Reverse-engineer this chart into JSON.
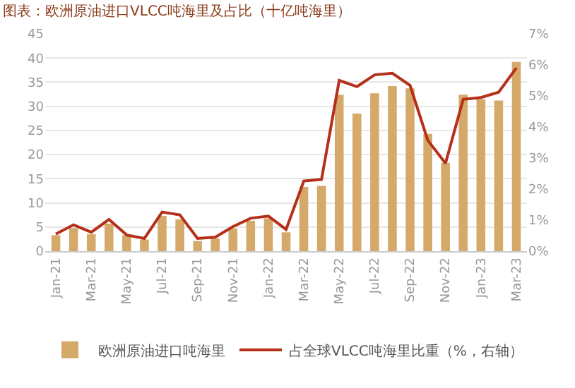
{
  "chart_data": {
    "type": "bar",
    "title": "图表：欧洲原油进口VLCC吨海里及占比（十亿吨海里）",
    "categories": [
      "Jan-21",
      null,
      "Mar-21",
      null,
      "May-21",
      null,
      "Jul-21",
      null,
      "Sep-21",
      null,
      "Nov-21",
      null,
      "Jan-22",
      null,
      "Mar-22",
      null,
      "May-22",
      null,
      "Jul-22",
      null,
      "Sep-22",
      null,
      "Nov-22",
      null,
      "Jan-23",
      null,
      "Mar-23"
    ],
    "series": [
      {
        "name": "欧洲原油进口吨海里",
        "color": "#d4a96a",
        "values": [
          3.3,
          4.8,
          3.5,
          5.7,
          3.3,
          2.4,
          7.3,
          6.6,
          2.1,
          2.6,
          4.7,
          6.3,
          6.8,
          3.9,
          13.3,
          13.5,
          32.4,
          28.5,
          32.7,
          34.2,
          33.7,
          24.3,
          18.3,
          32.4,
          31.5,
          31.2,
          39.2
        ]
      },
      {
        "name": "占全球VLCC吨海里比重（%，右轴）",
        "type": "line",
        "axis": "y2",
        "color": "#b5301a",
        "values": [
          0.55,
          0.85,
          0.61,
          1.02,
          0.52,
          0.41,
          1.26,
          1.17,
          0.41,
          0.45,
          0.79,
          1.06,
          1.13,
          0.7,
          2.26,
          2.31,
          5.5,
          5.3,
          5.68,
          5.73,
          5.34,
          3.57,
          2.83,
          4.89,
          4.95,
          5.12,
          5.9
        ]
      }
    ],
    "ylim": [
      0,
      45
    ],
    "yticks": [
      0,
      5,
      10,
      15,
      20,
      25,
      30,
      35,
      40,
      45
    ],
    "y2lim": [
      0,
      7
    ],
    "y2ticks": [
      {
        "value": 0,
        "label": "0%"
      },
      {
        "value": 1,
        "label": "1%"
      },
      {
        "value": 2,
        "label": "2%"
      },
      {
        "value": 3,
        "label": "3%"
      },
      {
        "value": 4,
        "label": "4%"
      },
      {
        "value": 5,
        "label": "5%"
      },
      {
        "value": 6,
        "label": "6%"
      },
      {
        "value": 7,
        "label": "7%"
      }
    ],
    "grid": "y",
    "legend": "bottom",
    "marker": "none",
    "line_style": "solid"
  }
}
